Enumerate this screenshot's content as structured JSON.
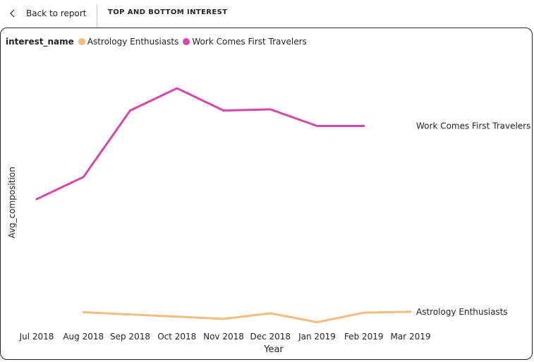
{
  "header": {
    "back_label": "Back to report",
    "title": "TOP AND BOTTOM INTEREST"
  },
  "legend": {
    "title": "interest_name",
    "items": [
      {
        "label": "Astrology Enthusiasts",
        "color": "#f5bb7c"
      },
      {
        "label": "Work Comes First Travelers",
        "color": "#d745a8"
      }
    ]
  },
  "chart_data": {
    "type": "line",
    "xlabel": "Year",
    "ylabel": "Avg_composition",
    "categories": [
      "Jul 2018",
      "Aug 2018",
      "Sep 2018",
      "Oct 2018",
      "Nov 2018",
      "Dec 2018",
      "Jan 2019",
      "Feb 2019",
      "Mar 2019"
    ],
    "grid": false,
    "legend_position": "top-left",
    "series": [
      {
        "name": "Work Comes First Travelers",
        "color": "#d745a8",
        "values": [
          6.2,
          7.2,
          10.2,
          11.2,
          10.2,
          10.25,
          9.5,
          9.5,
          null
        ]
      },
      {
        "name": "Astrology Enthusiasts",
        "color": "#f5bb7c",
        "values": [
          null,
          1.1,
          1.0,
          0.9,
          0.8,
          1.05,
          0.65,
          1.08,
          1.12
        ]
      }
    ],
    "ylim": [
      0,
      12
    ]
  }
}
